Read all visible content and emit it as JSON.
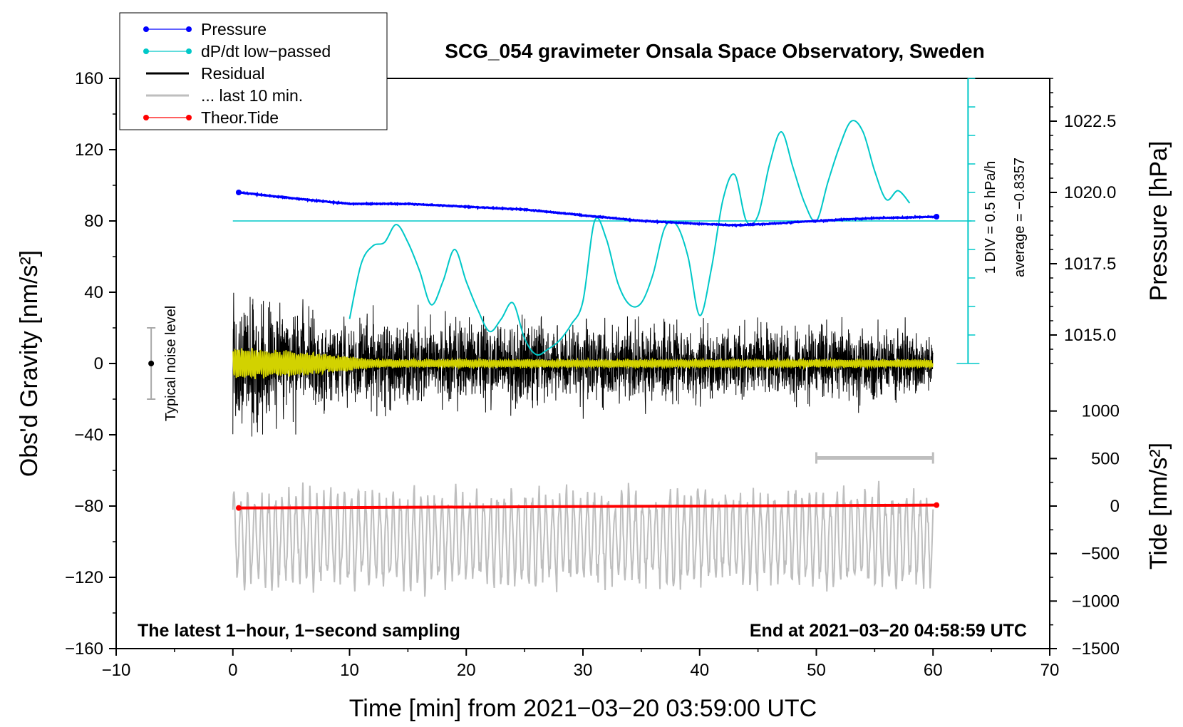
{
  "chart_data": {
    "type": "line",
    "title": "SCG_054 gravimeter Onsala Space Observatory, Sweden",
    "xlabel": "Time [min] from 2021−03−20 03:59:00 UTC",
    "ylabel_left": "Obs'd Gravity [nm/s²]",
    "ylabel_right_pressure": "Pressure [hPa]",
    "ylabel_right_tide": "Tide [nm/s²]",
    "xlim": [
      -10,
      70
    ],
    "ylim": [
      -160,
      160
    ],
    "x_ticks": [
      "−10",
      "0",
      "10",
      "20",
      "30",
      "40",
      "50",
      "60",
      "70"
    ],
    "y_ticks": [
      "160",
      "120",
      "80",
      "40",
      "0",
      "−40",
      "−80",
      "−120",
      "−160"
    ],
    "pressure_ticks": [
      "1022.5",
      "1020.0",
      "1017.5",
      "1015.0"
    ],
    "pressure_tick_values": [
      1022.5,
      1020.0,
      1017.5,
      1015.0
    ],
    "tide_ticks": [
      "1000",
      "500",
      "0",
      "−500",
      "−1000",
      "−1500"
    ],
    "tide_tick_values": [
      1000,
      500,
      0,
      -500,
      -1000,
      -1500
    ],
    "legend": {
      "position": "top-left",
      "entries": [
        {
          "label": "Pressure",
          "color": "#0000ff",
          "marker": true
        },
        {
          "label": "dP/dt low−passed",
          "color": "#00c8c8",
          "marker": true
        },
        {
          "label": "Residual",
          "color": "#000000",
          "marker": false
        },
        {
          "label": "... last 10 min.",
          "color": "#bebebe",
          "marker": false
        },
        {
          "label": "Theor.Tide",
          "color": "#ff0000",
          "marker": true
        }
      ]
    },
    "annotations": {
      "bottom_left": "The latest 1−hour, 1−second sampling",
      "bottom_right": "End at 2021−03−20 04:58:59 UTC",
      "noise_label": "Typical noise level",
      "dpdt_scale": "1 DIV = 0.5 hPa/h",
      "dpdt_average": "average = −0.8357"
    },
    "series": [
      {
        "name": "Pressure",
        "color": "#0000ff",
        "x": [
          0.5,
          5,
          10,
          15,
          20,
          25,
          30,
          35,
          40,
          43,
          46,
          50,
          55,
          60.3
        ],
        "values": [
          1020.0,
          1019.8,
          1019.6,
          1019.6,
          1019.5,
          1019.4,
          1019.2,
          1019.0,
          1018.9,
          1018.85,
          1018.9,
          1019.0,
          1019.1,
          1019.15
        ]
      },
      {
        "name": "dP/dt low-passed",
        "color": "#00c8c8",
        "x": [
          10,
          11,
          12,
          13,
          14,
          15,
          16,
          17,
          18,
          19,
          20,
          21,
          22,
          23,
          24,
          25,
          26,
          27,
          28,
          29,
          30,
          31,
          32,
          33,
          34,
          35,
          36,
          37,
          38,
          39,
          40,
          41,
          42,
          43,
          44,
          45,
          46,
          47,
          48,
          49,
          50,
          51,
          52,
          53,
          54,
          55,
          56,
          57,
          58
        ],
        "values": [
          25,
          56,
          66,
          68,
          78,
          68,
          52,
          33,
          46,
          64,
          46,
          30,
          18,
          25,
          34,
          14,
          5,
          8,
          13,
          22,
          35,
          80,
          70,
          45,
          33,
          34,
          50,
          76,
          78,
          60,
          27,
          53,
          92,
          106,
          80,
          83,
          112,
          130,
          110,
          90,
          80,
          102,
          122,
          136,
          130,
          108,
          92,
          97,
          90
        ]
      },
      {
        "name": "Residual",
        "color": "#000000",
        "x_range": [
          0,
          60
        ],
        "amplitude_envelope": [
          [
            0,
            55
          ],
          [
            5,
            45
          ],
          [
            10,
            35
          ],
          [
            20,
            35
          ],
          [
            40,
            30
          ],
          [
            55,
            30
          ],
          [
            60,
            25
          ]
        ]
      },
      {
        "name": "... last 10 min.",
        "color": "#bebebe",
        "x_range": [
          0,
          60
        ],
        "center": -98,
        "amplitude": 25
      },
      {
        "name": "Theor.Tide",
        "color": "#ff0000",
        "x": [
          0.5,
          60.3
        ],
        "values": [
          -20,
          10
        ]
      },
      {
        "name": "Low-passed residual",
        "color": "#d2d200",
        "x_range": [
          0,
          60
        ],
        "amplitude_envelope": [
          [
            0,
            8
          ],
          [
            8,
            5
          ],
          [
            12,
            2
          ],
          [
            60,
            2
          ]
        ]
      }
    ],
    "dpdt_baseline": 80,
    "dpdt_axis": {
      "x": 63,
      "ymin": 0,
      "ymax": 160,
      "divisions": 10
    },
    "noise_bar": {
      "x": -7,
      "center": 0,
      "half_range": 20
    },
    "ten_min_bar": {
      "x": [
        50,
        60
      ],
      "y": -53
    }
  }
}
